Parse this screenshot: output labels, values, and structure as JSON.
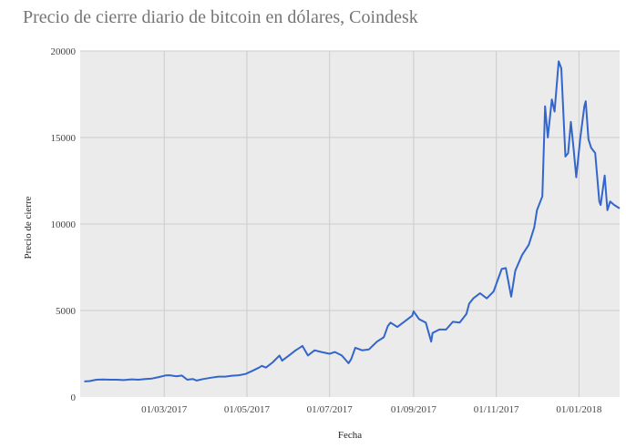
{
  "chart_data": {
    "type": "line",
    "title": "Precio de cierre diario de bitcoin en dólares, Coindesk",
    "xlabel": "Fecha",
    "ylabel": "Precio de cierre",
    "ylim": [
      0,
      20000
    ],
    "xlim": [
      "2017-01-01",
      "2018-01-31"
    ],
    "grid": true,
    "y_ticks": [
      "0",
      "5000",
      "10000",
      "15000",
      "20000"
    ],
    "x_ticks": [
      {
        "date": "2017-03-01",
        "label": "01/03/2017"
      },
      {
        "date": "2017-05-01",
        "label": "01/05/2017"
      },
      {
        "date": "2017-07-01",
        "label": "01/07/2017"
      },
      {
        "date": "2017-09-01",
        "label": "01/09/2017"
      },
      {
        "date": "2017-11-01",
        "label": "01/11/2017"
      },
      {
        "date": "2018-01-01",
        "label": "01/01/2018"
      }
    ],
    "series": [
      {
        "color": "#3366cc",
        "points": [
          [
            "2017-01-01",
            900
          ],
          [
            "2017-01-05",
            920
          ],
          [
            "2017-01-10",
            1000
          ],
          [
            "2017-01-15",
            1010
          ],
          [
            "2017-01-20",
            1000
          ],
          [
            "2017-01-25",
            1000
          ],
          [
            "2017-01-30",
            980
          ],
          [
            "2017-02-05",
            1020
          ],
          [
            "2017-02-10",
            1000
          ],
          [
            "2017-02-15",
            1040
          ],
          [
            "2017-02-20",
            1070
          ],
          [
            "2017-02-25",
            1150
          ],
          [
            "2017-03-02",
            1250
          ],
          [
            "2017-03-05",
            1260
          ],
          [
            "2017-03-10",
            1200
          ],
          [
            "2017-03-14",
            1240
          ],
          [
            "2017-03-18",
            1000
          ],
          [
            "2017-03-22",
            1040
          ],
          [
            "2017-03-25",
            950
          ],
          [
            "2017-03-30",
            1040
          ],
          [
            "2017-04-05",
            1120
          ],
          [
            "2017-04-10",
            1180
          ],
          [
            "2017-04-15",
            1180
          ],
          [
            "2017-04-20",
            1230
          ],
          [
            "2017-04-25",
            1260
          ],
          [
            "2017-04-30",
            1330
          ],
          [
            "2017-05-05",
            1510
          ],
          [
            "2017-05-10",
            1700
          ],
          [
            "2017-05-12",
            1800
          ],
          [
            "2017-05-15",
            1700
          ],
          [
            "2017-05-20",
            2000
          ],
          [
            "2017-05-25",
            2400
          ],
          [
            "2017-05-27",
            2100
          ],
          [
            "2017-06-01",
            2400
          ],
          [
            "2017-06-06",
            2700
          ],
          [
            "2017-06-08",
            2800
          ],
          [
            "2017-06-11",
            2950
          ],
          [
            "2017-06-15",
            2400
          ],
          [
            "2017-06-20",
            2700
          ],
          [
            "2017-06-25",
            2600
          ],
          [
            "2017-07-01",
            2500
          ],
          [
            "2017-07-05",
            2600
          ],
          [
            "2017-07-10",
            2400
          ],
          [
            "2017-07-15",
            1950
          ],
          [
            "2017-07-17",
            2200
          ],
          [
            "2017-07-20",
            2850
          ],
          [
            "2017-07-25",
            2700
          ],
          [
            "2017-07-30",
            2750
          ],
          [
            "2017-08-05",
            3200
          ],
          [
            "2017-08-10",
            3450
          ],
          [
            "2017-08-13",
            4100
          ],
          [
            "2017-08-15",
            4300
          ],
          [
            "2017-08-20",
            4050
          ],
          [
            "2017-08-25",
            4350
          ],
          [
            "2017-08-31",
            4700
          ],
          [
            "2017-09-01",
            4950
          ],
          [
            "2017-09-05",
            4500
          ],
          [
            "2017-09-10",
            4300
          ],
          [
            "2017-09-14",
            3200
          ],
          [
            "2017-09-15",
            3700
          ],
          [
            "2017-09-20",
            3900
          ],
          [
            "2017-09-25",
            3900
          ],
          [
            "2017-09-30",
            4350
          ],
          [
            "2017-10-05",
            4300
          ],
          [
            "2017-10-10",
            4800
          ],
          [
            "2017-10-12",
            5400
          ],
          [
            "2017-10-15",
            5700
          ],
          [
            "2017-10-20",
            6000
          ],
          [
            "2017-10-25",
            5700
          ],
          [
            "2017-10-30",
            6100
          ],
          [
            "2017-11-05",
            7400
          ],
          [
            "2017-11-08",
            7450
          ],
          [
            "2017-11-12",
            5800
          ],
          [
            "2017-11-15",
            7300
          ],
          [
            "2017-11-20",
            8200
          ],
          [
            "2017-11-25",
            8800
          ],
          [
            "2017-11-29",
            9800
          ],
          [
            "2017-12-01",
            10800
          ],
          [
            "2017-12-05",
            11600
          ],
          [
            "2017-12-07",
            16800
          ],
          [
            "2017-12-09",
            15000
          ],
          [
            "2017-12-12",
            17200
          ],
          [
            "2017-12-14",
            16500
          ],
          [
            "2017-12-17",
            19400
          ],
          [
            "2017-12-19",
            19000
          ],
          [
            "2017-12-22",
            13900
          ],
          [
            "2017-12-24",
            14100
          ],
          [
            "2017-12-26",
            15900
          ],
          [
            "2017-12-28",
            14400
          ],
          [
            "2017-12-30",
            12700
          ],
          [
            "2018-01-02",
            15000
          ],
          [
            "2018-01-05",
            16800
          ],
          [
            "2018-01-06",
            17100
          ],
          [
            "2018-01-08",
            14900
          ],
          [
            "2018-01-10",
            14400
          ],
          [
            "2018-01-13",
            14100
          ],
          [
            "2018-01-16",
            11300
          ],
          [
            "2018-01-17",
            11100
          ],
          [
            "2018-01-20",
            12800
          ],
          [
            "2018-01-22",
            10800
          ],
          [
            "2018-01-24",
            11300
          ],
          [
            "2018-01-27",
            11100
          ],
          [
            "2018-01-31",
            10900
          ]
        ]
      }
    ]
  }
}
